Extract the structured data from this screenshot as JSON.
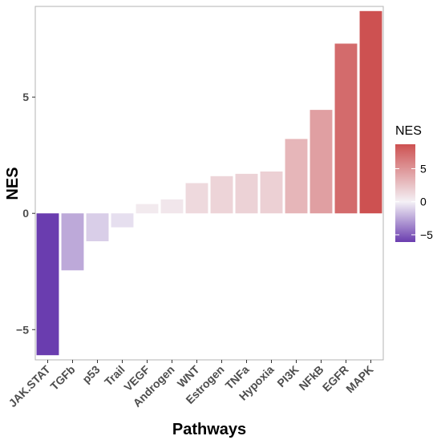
{
  "chart_data": {
    "type": "bar",
    "xlabel": "Pathways",
    "ylabel": "NES",
    "ylim": [
      -6.3,
      8.9
    ],
    "yticks": [
      -5,
      0,
      5
    ],
    "categories": [
      "JAK.STAT",
      "TGFb",
      "p53",
      "Trail",
      "VEGF",
      "Androgen",
      "WNT",
      "Estrogen",
      "TNFa",
      "Hypoxia",
      "PI3K",
      "NFkB",
      "EGFR",
      "MAPK"
    ],
    "values": [
      -6.1,
      -2.45,
      -1.2,
      -0.6,
      0.4,
      0.6,
      1.3,
      1.6,
      1.7,
      1.8,
      3.2,
      4.45,
      7.3,
      8.7
    ],
    "grid": false,
    "legend": {
      "title": "NES",
      "position": "right",
      "ticks": [
        -5,
        0,
        5
      ],
      "low_color": "#6a3daf",
      "mid_color": "#f4f1f6",
      "high_color": "#cd5151",
      "range": [
        -6.1,
        8.7
      ]
    }
  }
}
